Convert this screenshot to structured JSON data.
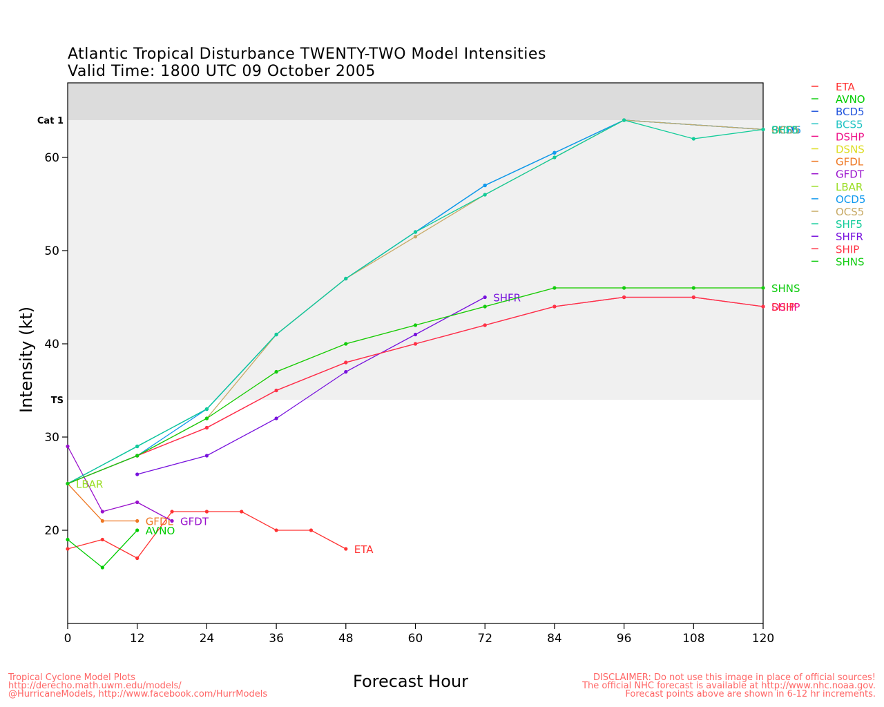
{
  "header": {
    "title_line1": "Atlantic Tropical Disturbance TWENTY-TWO Model Intensities",
    "title_line2": "Valid Time: 1800 UTC 09 October 2005"
  },
  "footer": {
    "left": [
      "Tropical Cyclone Model Plots",
      "http://derecho.math.uwm.edu/models/",
      "@HurricaneModels, http://www.facebook.com/HurrModels"
    ],
    "right": [
      "DISCLAIMER: Do not use this image in place of official sources!",
      "The official NHC forecast is available at http://www.nhc.noaa.gov.",
      "Forecast points above are shown in 6-12 hr increments."
    ]
  },
  "chart_data": {
    "type": "line",
    "xlabel": "Forecast Hour",
    "ylabel": "Intensity (kt)",
    "xlim": [
      0,
      120
    ],
    "ylim": [
      10,
      68
    ],
    "xticks": [
      0,
      12,
      24,
      36,
      48,
      60,
      72,
      84,
      96,
      108,
      120
    ],
    "yticks": [
      20,
      30,
      40,
      50,
      60
    ],
    "bands": [
      {
        "from": 34,
        "to": 64,
        "color": "#f0f0f0"
      },
      {
        "from": 64,
        "to": 68,
        "color": "#dcdcdc"
      }
    ],
    "thresholds": [
      {
        "label": "TS",
        "value": 34
      },
      {
        "label": "Cat 1",
        "value": 64
      }
    ],
    "legend_position": "right",
    "series": [
      {
        "name": "ETA",
        "color": "#ff3333",
        "points": [
          [
            0,
            18
          ],
          [
            6,
            19
          ],
          [
            12,
            17
          ],
          [
            18,
            22
          ],
          [
            24,
            22
          ],
          [
            30,
            22
          ],
          [
            36,
            20
          ],
          [
            42,
            20
          ],
          [
            48,
            18
          ]
        ],
        "end_label": "ETA"
      },
      {
        "name": "AVNO",
        "color": "#00cc00",
        "points": [
          [
            0,
            19
          ],
          [
            6,
            16
          ],
          [
            12,
            20
          ]
        ],
        "end_label": "AVNO"
      },
      {
        "name": "BCD5",
        "color": "#2255dd",
        "points": [
          [
            0,
            25
          ],
          [
            12,
            29
          ],
          [
            24,
            33
          ],
          [
            36,
            41
          ],
          [
            48,
            47
          ],
          [
            60,
            52
          ],
          [
            72,
            57
          ],
          [
            84,
            60.5
          ],
          [
            96,
            64
          ],
          [
            120,
            63
          ]
        ],
        "end_label": "BCD5"
      },
      {
        "name": "BCS5",
        "color": "#22c3c3",
        "points": [
          [
            0,
            25
          ],
          [
            12,
            29
          ],
          [
            24,
            33
          ],
          [
            36,
            41
          ],
          [
            48,
            47
          ],
          [
            60,
            52
          ],
          [
            72,
            57
          ],
          [
            84,
            60.5
          ],
          [
            96,
            64
          ],
          [
            120,
            63
          ]
        ],
        "end_label": "BCS5"
      },
      {
        "name": "DSHP",
        "color": "#ee1188",
        "points": [
          [
            0,
            25
          ],
          [
            12,
            28
          ],
          [
            24,
            31
          ],
          [
            36,
            35
          ],
          [
            48,
            38
          ],
          [
            60,
            40
          ],
          [
            72,
            42
          ],
          [
            84,
            44
          ],
          [
            96,
            45
          ],
          [
            108,
            45
          ],
          [
            120,
            44
          ]
        ],
        "end_label": "DSHP"
      },
      {
        "name": "DSNS",
        "color": "#dddd22",
        "points": [
          [
            0,
            25
          ],
          [
            12,
            28
          ],
          [
            24,
            32
          ],
          [
            36,
            37
          ],
          [
            48,
            40
          ],
          [
            60,
            42
          ],
          [
            72,
            44
          ],
          [
            84,
            46
          ],
          [
            96,
            46
          ],
          [
            108,
            46
          ],
          [
            120,
            46
          ]
        ],
        "end_label": ""
      },
      {
        "name": "GFDL",
        "color": "#ee7722",
        "points": [
          [
            0,
            25
          ],
          [
            6,
            21
          ],
          [
            12,
            21
          ]
        ],
        "end_label": "GFDL"
      },
      {
        "name": "GFDT",
        "color": "#9911cc",
        "points": [
          [
            0,
            29
          ],
          [
            6,
            22
          ],
          [
            12,
            23
          ],
          [
            18,
            21
          ]
        ],
        "end_label": "GFDT"
      },
      {
        "name": "LBAR",
        "color": "#99dd22",
        "points": [
          [
            0,
            25
          ]
        ],
        "end_label": "LBAR"
      },
      {
        "name": "OCD5",
        "color": "#1199ee",
        "points": [
          [
            0,
            25
          ],
          [
            12,
            28
          ],
          [
            24,
            33
          ],
          [
            36,
            41
          ],
          [
            48,
            47
          ],
          [
            60,
            52
          ],
          [
            72,
            57
          ],
          [
            84,
            60.5
          ],
          [
            96,
            64
          ],
          [
            120,
            63
          ]
        ],
        "end_label": "OCD5"
      },
      {
        "name": "OCS5",
        "color": "#c8aa66",
        "points": [
          [
            0,
            25
          ],
          [
            12,
            28
          ],
          [
            24,
            32
          ],
          [
            36,
            41
          ],
          [
            48,
            47
          ],
          [
            60,
            51.5
          ],
          [
            72,
            56
          ],
          [
            84,
            60
          ],
          [
            96,
            64
          ],
          [
            120,
            63
          ]
        ],
        "end_label": "OCS5"
      },
      {
        "name": "SHF5",
        "color": "#11cc99",
        "points": [
          [
            0,
            25
          ],
          [
            12,
            29
          ],
          [
            24,
            33
          ],
          [
            36,
            41
          ],
          [
            48,
            47
          ],
          [
            60,
            52
          ],
          [
            72,
            56
          ],
          [
            84,
            60
          ],
          [
            96,
            64
          ],
          [
            108,
            62
          ],
          [
            120,
            63
          ]
        ],
        "end_label": "SHF5"
      },
      {
        "name": "SHFR",
        "color": "#7711dd",
        "points": [
          [
            12,
            26
          ],
          [
            24,
            28
          ],
          [
            36,
            32
          ],
          [
            48,
            37
          ],
          [
            60,
            41
          ],
          [
            72,
            45
          ]
        ],
        "end_label": "SHFR"
      },
      {
        "name": "SHIP",
        "color": "#ff3344",
        "points": [
          [
            0,
            25
          ],
          [
            12,
            28
          ],
          [
            24,
            31
          ],
          [
            36,
            35
          ],
          [
            48,
            38
          ],
          [
            60,
            40
          ],
          [
            72,
            42
          ],
          [
            84,
            44
          ],
          [
            96,
            45
          ],
          [
            108,
            45
          ],
          [
            120,
            44
          ]
        ],
        "end_label": "SHIP"
      },
      {
        "name": "SHNS",
        "color": "#11cc11",
        "points": [
          [
            0,
            25
          ],
          [
            12,
            28
          ],
          [
            24,
            32
          ],
          [
            36,
            37
          ],
          [
            48,
            40
          ],
          [
            60,
            42
          ],
          [
            72,
            44
          ],
          [
            84,
            46
          ],
          [
            96,
            46
          ],
          [
            108,
            46
          ],
          [
            120,
            46
          ]
        ],
        "end_label": "SHNS"
      }
    ]
  }
}
